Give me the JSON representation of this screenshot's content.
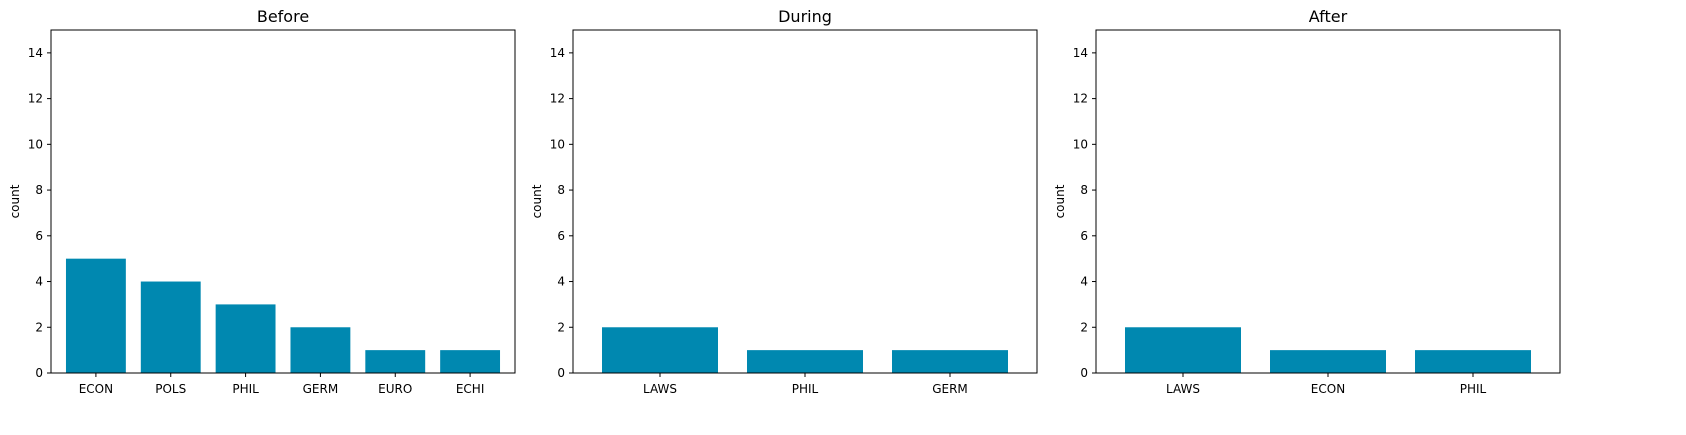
{
  "chart_data": [
    {
      "type": "bar",
      "title": "Before",
      "ylabel": "count",
      "xlabel": "",
      "categories": [
        "ECON",
        "POLS",
        "PHIL",
        "GERM",
        "EURO",
        "ECHI"
      ],
      "values": [
        5,
        4,
        3,
        2,
        1,
        1
      ],
      "ylim": [
        0,
        15
      ],
      "yticks": [
        0,
        2,
        4,
        6,
        8,
        10,
        12,
        14
      ],
      "color": "#0088b0",
      "grid": false
    },
    {
      "type": "bar",
      "title": "During",
      "ylabel": "count",
      "xlabel": "",
      "categories": [
        "LAWS",
        "PHIL",
        "GERM"
      ],
      "values": [
        2,
        1,
        1
      ],
      "ylim": [
        0,
        15
      ],
      "yticks": [
        0,
        2,
        4,
        6,
        8,
        10,
        12,
        14
      ],
      "color": "#0088b0",
      "grid": false
    },
    {
      "type": "bar",
      "title": "After",
      "ylabel": "count",
      "xlabel": "",
      "categories": [
        "LAWS",
        "ECON",
        "PHIL"
      ],
      "values": [
        2,
        1,
        1
      ],
      "ylim": [
        0,
        15
      ],
      "yticks": [
        0,
        2,
        4,
        6,
        8,
        10,
        12,
        14
      ],
      "color": "#0088b0",
      "grid": false
    }
  ]
}
